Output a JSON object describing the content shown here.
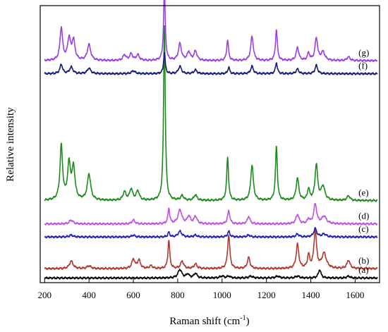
{
  "chart_data": {
    "type": "line",
    "title": "",
    "xlabel_main": "Raman shift (cm",
    "xlabel_sup": "-1",
    "xlabel_close": ")",
    "ylabel": "Relative intensity",
    "xlim": [
      180,
      1710
    ],
    "ylim": [
      -0.2,
      29.5
    ],
    "x_ticks": [
      200,
      400,
      600,
      800,
      1000,
      1200,
      1400,
      1600
    ],
    "x_tick_labels": [
      "200",
      "400",
      "600",
      "800",
      "1000",
      "1200",
      "1400",
      "1600"
    ],
    "y_ticks_visible": false,
    "grid": false,
    "legend": "none",
    "series": [
      {
        "name": "(a)",
        "color": "#000000",
        "baseline": 0.3,
        "peaks": [
          [
            810,
            0.9,
            10
          ],
          [
            845,
            0.4,
            8
          ],
          [
            880,
            0.5,
            8
          ],
          [
            1000,
            0.2,
            10
          ],
          [
            1030,
            0.2,
            8
          ],
          [
            1130,
            0.2,
            10
          ],
          [
            1250,
            0.2,
            10
          ],
          [
            1340,
            0.2,
            10
          ],
          [
            1440,
            0.9,
            7
          ],
          [
            1570,
            0.2,
            8
          ]
        ]
      },
      {
        "name": "(b)",
        "color": "#b03a2e",
        "baseline": 1.3,
        "peaks": [
          [
            320,
            0.8,
            10
          ],
          [
            400,
            0.3,
            10
          ],
          [
            600,
            1.0,
            8
          ],
          [
            625,
            0.9,
            8
          ],
          [
            680,
            0.3,
            8
          ],
          [
            760,
            3.0,
            5
          ],
          [
            820,
            0.8,
            8
          ],
          [
            880,
            0.5,
            8
          ],
          [
            1030,
            3.6,
            6
          ],
          [
            1120,
            1.2,
            7
          ],
          [
            1340,
            2.6,
            7
          ],
          [
            1390,
            1.4,
            6
          ],
          [
            1420,
            4.0,
            7
          ],
          [
            1460,
            1.6,
            12
          ],
          [
            1570,
            0.9,
            8
          ]
        ]
      },
      {
        "name": "(c)",
        "color": "#2020b8",
        "baseline": 4.7,
        "peaks": [
          [
            320,
            0.2,
            10
          ],
          [
            600,
            0.2,
            8
          ],
          [
            760,
            0.5,
            5
          ],
          [
            810,
            0.6,
            10
          ],
          [
            880,
            0.2,
            8
          ],
          [
            1030,
            0.6,
            6
          ],
          [
            1120,
            0.2,
            8
          ],
          [
            1340,
            0.3,
            8
          ],
          [
            1420,
            0.9,
            8
          ],
          [
            1460,
            0.3,
            12
          ]
        ]
      },
      {
        "name": "(d)",
        "color": "#c050e8",
        "baseline": 6.1,
        "peaks": [
          [
            320,
            0.4,
            10
          ],
          [
            600,
            0.4,
            8
          ],
          [
            760,
            1.6,
            5
          ],
          [
            810,
            1.5,
            10
          ],
          [
            850,
            0.8,
            8
          ],
          [
            880,
            0.8,
            8
          ],
          [
            1030,
            1.4,
            6
          ],
          [
            1120,
            0.8,
            7
          ],
          [
            1340,
            1.0,
            8
          ],
          [
            1390,
            0.5,
            6
          ],
          [
            1420,
            2.1,
            8
          ],
          [
            1460,
            0.8,
            12
          ]
        ]
      },
      {
        "name": "(e)",
        "color": "#1e8a1e",
        "baseline": 8.6,
        "peaks": [
          [
            275,
            5.8,
            7
          ],
          [
            310,
            3.8,
            8
          ],
          [
            330,
            3.4,
            8
          ],
          [
            400,
            2.8,
            9
          ],
          [
            560,
            0.9,
            8
          ],
          [
            590,
            1.2,
            8
          ],
          [
            620,
            1.0,
            8
          ],
          [
            740,
            18.8,
            4.5
          ],
          [
            820,
            0.5,
            8
          ],
          [
            880,
            0.6,
            8
          ],
          [
            1025,
            4.6,
            5
          ],
          [
            1135,
            3.8,
            7
          ],
          [
            1245,
            5.8,
            5
          ],
          [
            1340,
            2.4,
            7
          ],
          [
            1390,
            1.2,
            6
          ],
          [
            1425,
            3.8,
            7
          ],
          [
            1455,
            1.5,
            10
          ],
          [
            1570,
            0.5,
            8
          ]
        ]
      },
      {
        "name": "(f)",
        "color": "#1a1a7a",
        "baseline": 22.2,
        "peaks": [
          [
            275,
            1.0,
            7
          ],
          [
            320,
            0.7,
            9
          ],
          [
            400,
            0.6,
            9
          ],
          [
            600,
            0.3,
            10
          ],
          [
            740,
            2.3,
            4.5
          ],
          [
            810,
            0.8,
            8
          ],
          [
            880,
            0.4,
            8
          ],
          [
            1030,
            0.7,
            5
          ],
          [
            1135,
            0.8,
            7
          ],
          [
            1245,
            1.2,
            5
          ],
          [
            1340,
            0.5,
            7
          ],
          [
            1425,
            0.9,
            7
          ]
        ]
      },
      {
        "name": "(g)",
        "color": "#9a40e0",
        "baseline": 23.6,
        "peaks": [
          [
            275,
            3.5,
            7
          ],
          [
            310,
            2.3,
            8
          ],
          [
            330,
            2.1,
            8
          ],
          [
            400,
            1.7,
            9
          ],
          [
            560,
            0.6,
            8
          ],
          [
            590,
            0.7,
            8
          ],
          [
            620,
            0.6,
            8
          ],
          [
            740,
            7.6,
            4.5
          ],
          [
            810,
            1.8,
            8
          ],
          [
            850,
            0.9,
            8
          ],
          [
            880,
            1.0,
            8
          ],
          [
            1025,
            2.2,
            5
          ],
          [
            1135,
            2.6,
            7
          ],
          [
            1245,
            3.3,
            5
          ],
          [
            1340,
            1.4,
            7
          ],
          [
            1390,
            0.8,
            6
          ],
          [
            1425,
            2.4,
            7
          ],
          [
            1455,
            0.9,
            10
          ],
          [
            1570,
            0.4,
            8
          ]
        ]
      }
    ]
  }
}
